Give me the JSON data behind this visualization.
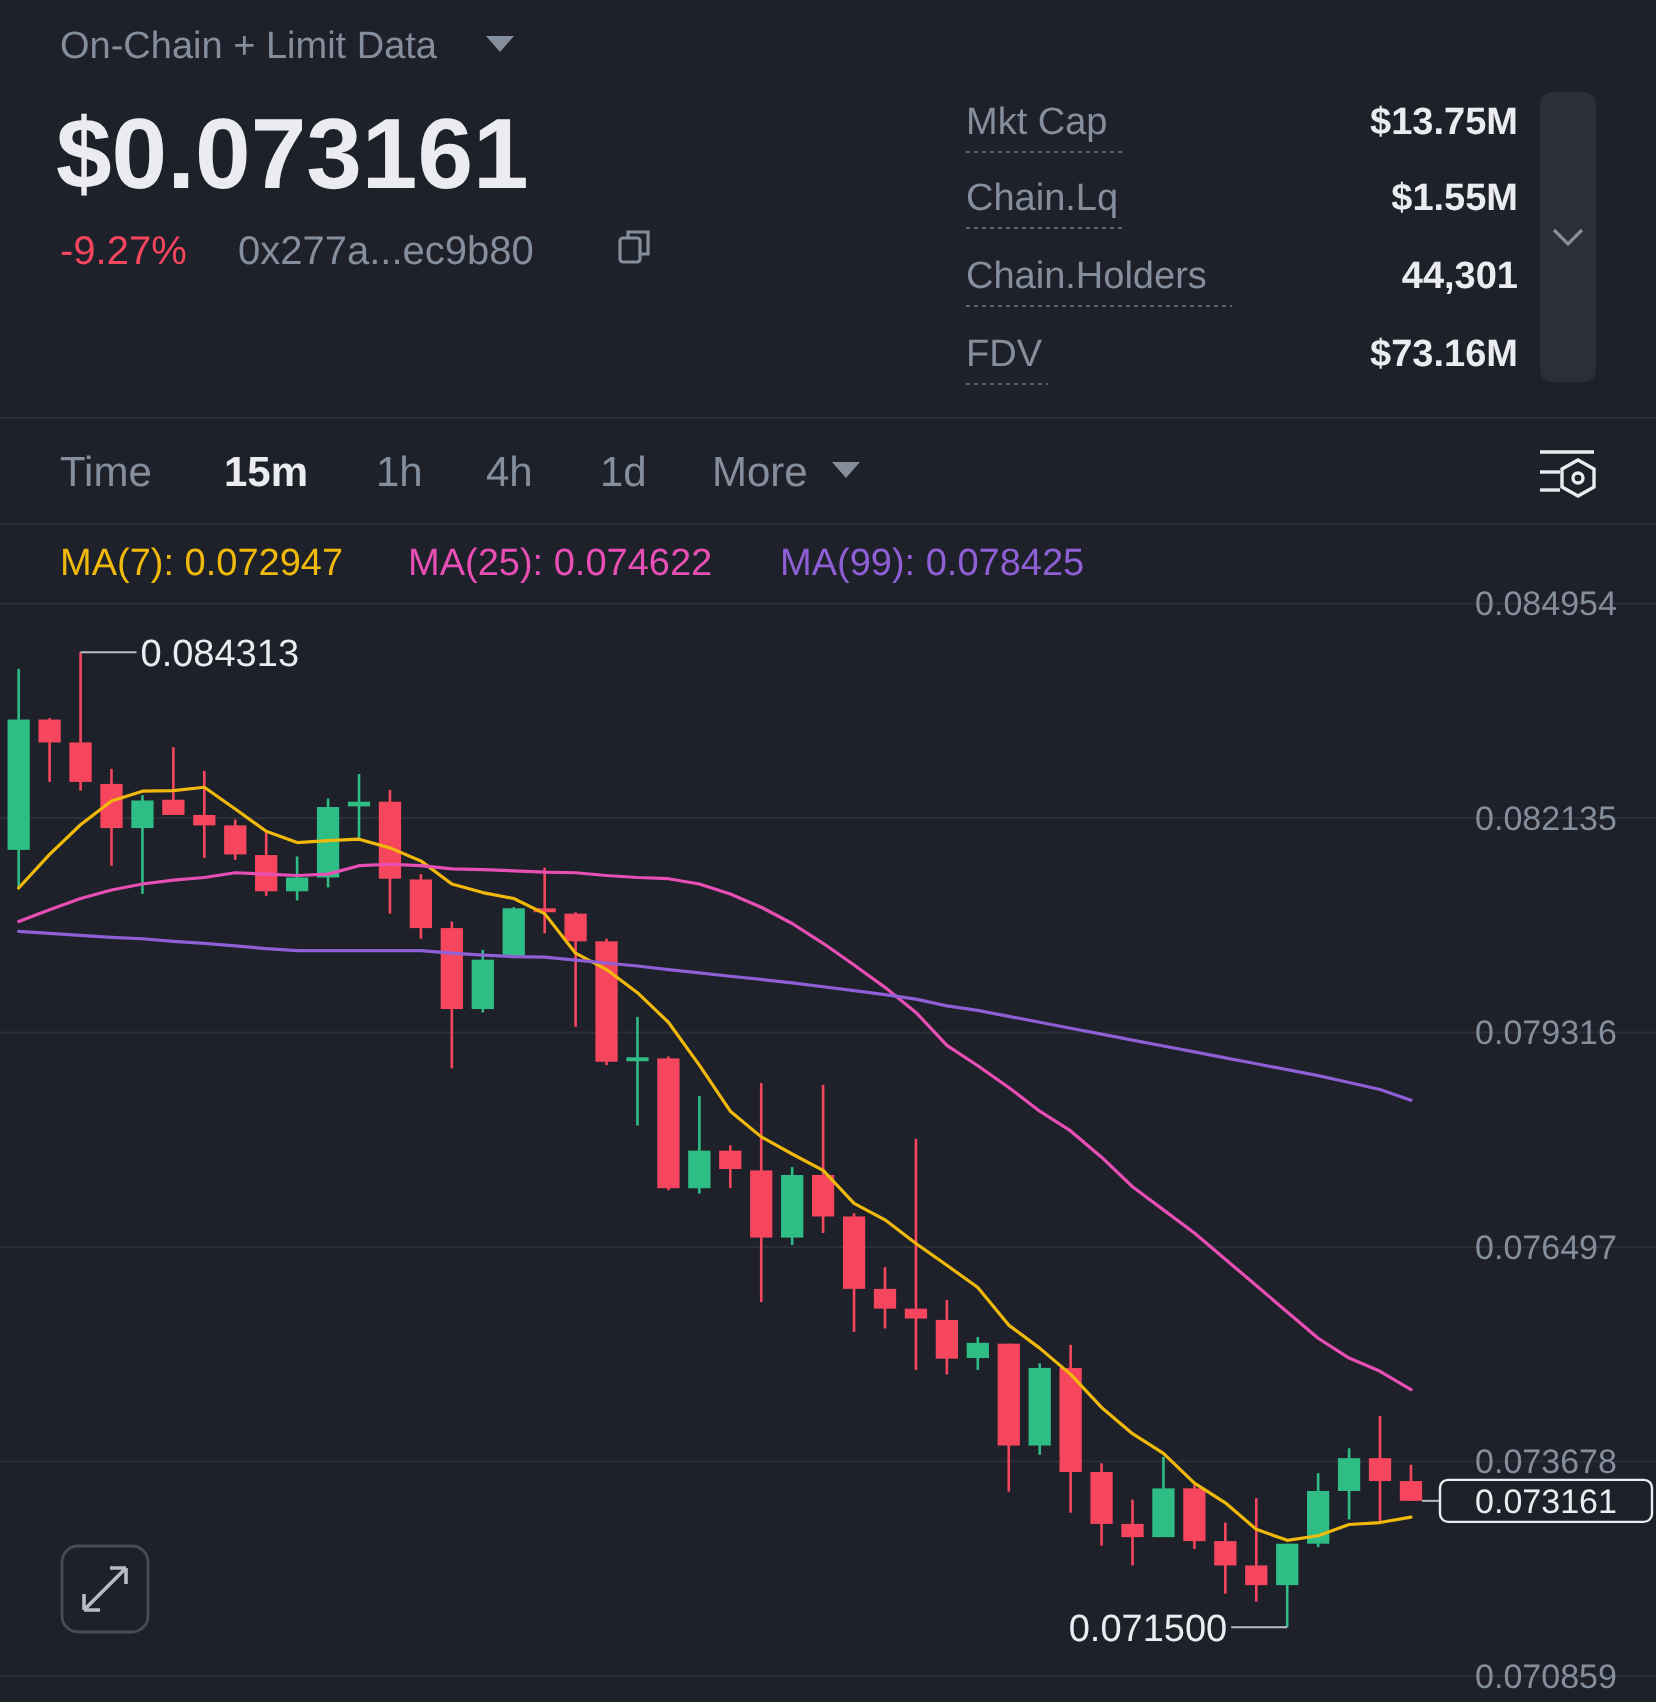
{
  "chart_data": {
    "type": "candlestick",
    "title": "On-Chain + Limit Data",
    "categories": [
      null,
      null,
      null,
      null,
      null,
      null,
      null,
      null,
      null,
      null,
      null,
      null,
      null,
      null,
      null,
      null,
      null,
      null,
      null,
      null,
      null,
      null,
      null,
      null,
      null,
      null,
      null,
      null,
      null,
      null,
      null,
      null,
      null,
      null,
      null,
      null,
      null,
      null,
      null,
      null,
      null,
      null,
      null,
      null,
      null,
      null
    ],
    "ohlc": [
      [
        0.081717,
        0.084097,
        0.081224,
        0.08343
      ],
      [
        0.08343,
        0.083448,
        0.08261,
        0.083129
      ],
      [
        0.083129,
        0.084313,
        0.082496,
        0.08261
      ],
      [
        0.082584,
        0.082781,
        0.081509,
        0.082003
      ],
      [
        0.082003,
        0.082436,
        0.081138,
        0.082366
      ],
      [
        0.082376,
        0.083067,
        0.082176,
        0.082176
      ],
      [
        0.082176,
        0.082755,
        0.081613,
        0.082039
      ],
      [
        0.082039,
        0.082117,
        0.081587,
        0.081657
      ],
      [
        0.081649,
        0.081961,
        0.081112,
        0.081172
      ],
      [
        0.081172,
        0.081631,
        0.081052,
        0.081354
      ],
      [
        0.081354,
        0.082392,
        0.081224,
        0.08228
      ],
      [
        0.082288,
        0.082714,
        0.081873,
        0.08235
      ],
      [
        0.08235,
        0.082506,
        0.080879,
        0.081338
      ],
      [
        0.081328,
        0.081398,
        0.080549,
        0.080689
      ],
      [
        0.080689,
        0.080775,
        0.078846,
        0.079625
      ],
      [
        0.079625,
        0.080403,
        0.079581,
        0.080274
      ],
      [
        0.080315,
        0.080964,
        0.0803,
        0.080949
      ],
      [
        0.080949,
        0.081483,
        0.080619,
        0.080897
      ],
      [
        0.080879,
        0.080897,
        0.079391,
        0.080515
      ],
      [
        0.080515,
        0.080549,
        0.078888,
        0.078932
      ],
      [
        0.078939,
        0.079521,
        0.078093,
        0.078991
      ],
      [
        0.078976,
        0.079002,
        0.077244,
        0.07727
      ],
      [
        0.07727,
        0.078483,
        0.0772,
        0.077764
      ],
      [
        0.077764,
        0.077834,
        0.07727,
        0.077522
      ],
      [
        0.077504,
        0.078654,
        0.075773,
        0.076621
      ],
      [
        0.076621,
        0.077548,
        0.076525,
        0.077444
      ],
      [
        0.077444,
        0.078628,
        0.076681,
        0.076899
      ],
      [
        0.076899,
        0.076941,
        0.075383,
        0.075947
      ],
      [
        0.075947,
        0.076232,
        0.075427,
        0.075687
      ],
      [
        0.075687,
        0.077919,
        0.074882,
        0.075557
      ],
      [
        0.075539,
        0.075799,
        0.074823,
        0.07503
      ],
      [
        0.075038,
        0.075316,
        0.074882,
        0.075238
      ],
      [
        0.075227,
        0.075227,
        0.073281,
        0.073888
      ],
      [
        0.073888,
        0.074968,
        0.073766,
        0.074908
      ],
      [
        0.074908,
        0.075212,
        0.073005,
        0.07354
      ],
      [
        0.07354,
        0.073654,
        0.072572,
        0.072858
      ],
      [
        0.072858,
        0.073177,
        0.072312,
        0.072684
      ],
      [
        0.072684,
        0.07374,
        0.072684,
        0.073325
      ],
      [
        0.073325,
        0.073369,
        0.072528,
        0.072632
      ],
      [
        0.072632,
        0.072876,
        0.071941,
        0.072312
      ],
      [
        0.072312,
        0.073195,
        0.071837,
        0.072053
      ],
      [
        0.072053,
        0.072598,
        0.0715,
        0.072598
      ],
      [
        0.072598,
        0.073525,
        0.072554,
        0.073291
      ],
      [
        0.073291,
        0.073852,
        0.072917,
        0.073722
      ],
      [
        0.073722,
        0.074277,
        0.072876,
        0.073421
      ],
      [
        0.073421,
        0.073636,
        0.073161,
        0.073161
      ]
    ],
    "series": [
      {
        "name": "MA(7): 0.072947",
        "type": "line",
        "color": "#f0b90b",
        "values": [
          0.081216,
          0.081657,
          0.082047,
          0.082358,
          0.082488,
          0.082496,
          0.08254,
          0.082254,
          0.081961,
          0.081813,
          0.081839,
          0.081857,
          0.081743,
          0.081572,
          0.081268,
          0.081156,
          0.081078,
          0.080879,
          0.080359,
          0.080144,
          0.07984,
          0.079451,
          0.078888,
          0.078283,
          0.077945,
          0.07772,
          0.077504,
          0.07707,
          0.076855,
          0.076544,
          0.076258,
          0.075965,
          0.075471,
          0.075168,
          0.074823,
          0.074389,
          0.074044,
          0.073784,
          0.073395,
          0.073135,
          0.072787,
          0.072642,
          0.072702,
          0.07285,
          0.072876,
          0.072947
        ]
      },
      {
        "name": "MA(25): 0.074622",
        "type": "line",
        "color": "#e84fb5",
        "values": [
          0.080775,
          0.080931,
          0.081078,
          0.08119,
          0.081268,
          0.08132,
          0.081354,
          0.081416,
          0.081398,
          0.08138,
          0.081398,
          0.081509,
          0.081528,
          0.081509,
          0.081468,
          0.081457,
          0.081442,
          0.081424,
          0.081416,
          0.08138,
          0.081354,
          0.081338,
          0.081268,
          0.081138,
          0.080964,
          0.080749,
          0.080489,
          0.080204,
          0.07991,
          0.079581,
          0.079147,
          0.07888,
          0.078594,
          0.078283,
          0.078023,
          0.077678,
          0.077289,
          0.076985,
          0.076681,
          0.076336,
          0.075991,
          0.075643,
          0.075298,
          0.075038,
          0.074864,
          0.074622
        ]
      },
      {
        "name": "MA(99): 0.078425",
        "type": "line",
        "color": "#8f5fd6",
        "values": [
          0.080645,
          0.080619,
          0.080593,
          0.080567,
          0.080549,
          0.080515,
          0.080489,
          0.080455,
          0.080419,
          0.080393,
          0.080393,
          0.080393,
          0.080393,
          0.080393,
          0.080359,
          0.080333,
          0.080315,
          0.080308,
          0.080269,
          0.08023,
          0.080191,
          0.080144,
          0.0801,
          0.080056,
          0.080014,
          0.07997,
          0.079918,
          0.079866,
          0.079814,
          0.079755,
          0.079666,
          0.079607,
          0.079529,
          0.079451,
          0.079373,
          0.079295,
          0.079217,
          0.079139,
          0.079062,
          0.078984,
          0.078906,
          0.078828,
          0.07875,
          0.078659,
          0.078568,
          0.078425
        ]
      }
    ],
    "ylim": [
      0.070859,
      0.086
    ],
    "yticks": [
      0.084954,
      0.082135,
      0.079316,
      0.076497,
      0.073678,
      0.070859
    ],
    "grid": "y",
    "legend": "top",
    "ref_lines": [
      {
        "axis": "y",
        "value": 0.073161,
        "label": "0.073161"
      }
    ],
    "annotations": [
      "$0.073161",
      "-9.27%",
      "0x277a...ec9b80",
      "Mkt Cap",
      "$13.75M",
      "Chain.Lq",
      "$1.55M",
      "Chain.Holders",
      "44,301",
      "FDV",
      "$73.16M",
      "Time",
      "15m",
      "1h",
      "4h",
      "1d",
      "More",
      "0.084313",
      "0.071500"
    ]
  }
}
